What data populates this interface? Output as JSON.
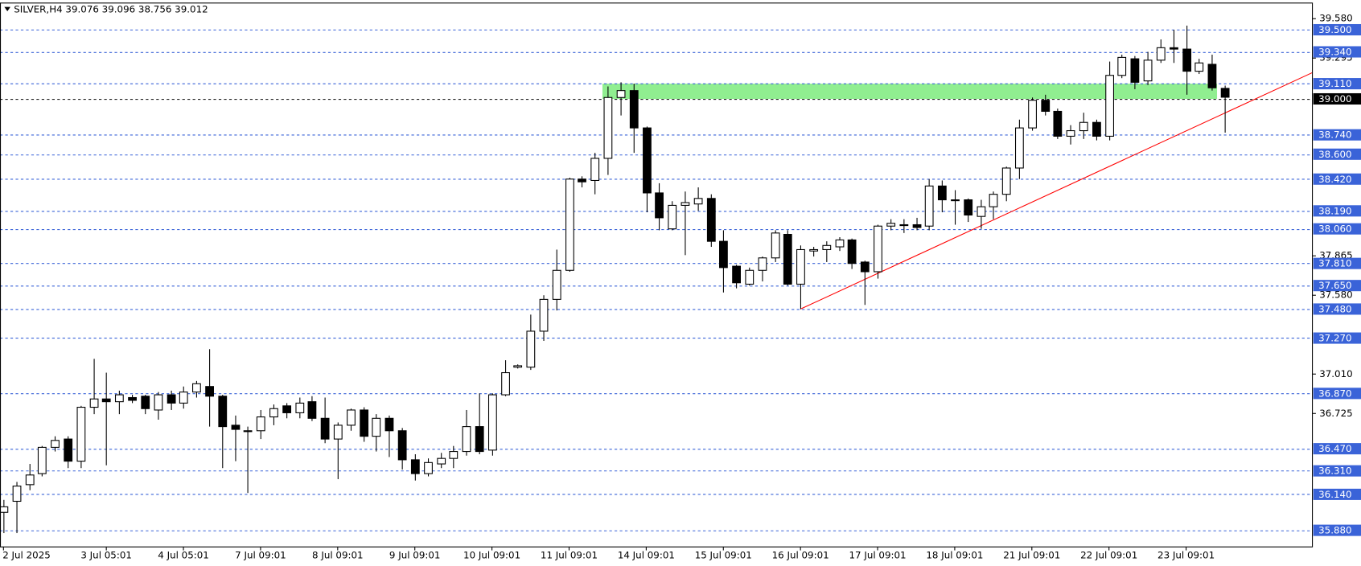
{
  "chart_data": {
    "type": "candlestick",
    "title": "SILVER,H4  39.076 39.096 38.756 39.012",
    "categories": [
      "2 Jul 2025",
      null,
      null,
      null,
      null,
      null,
      null,
      null,
      "3 Jul 05:01",
      null,
      null,
      null,
      null,
      null,
      "4 Jul 05:01",
      null,
      null,
      null,
      null,
      null,
      "7 Jul 09:01",
      null,
      null,
      null,
      null,
      null,
      "8 Jul 09:01",
      null,
      null,
      null,
      null,
      null,
      "9 Jul 09:01",
      null,
      null,
      null,
      null,
      null,
      "10 Jul 09:01",
      null,
      null,
      null,
      null,
      null,
      "11 Jul 09:01",
      null,
      null,
      null,
      null,
      null,
      "14 Jul 09:01",
      null,
      null,
      null,
      null,
      null,
      "15 Jul 09:01",
      null,
      null,
      null,
      null,
      null,
      "16 Jul 09:01",
      null,
      null,
      null,
      null,
      null,
      "17 Jul 09:01",
      null,
      null,
      null,
      null,
      null,
      "18 Jul 09:01",
      null,
      null,
      null,
      null,
      null,
      "21 Jul 09:01",
      null,
      null,
      null,
      null,
      null,
      "22 Jul 09:01",
      null,
      null,
      null,
      null,
      null,
      "23 Jul 09:01",
      null,
      null,
      null
    ],
    "open": [
      36.01,
      36.09,
      36.21,
      36.29,
      36.48,
      36.54,
      36.38,
      36.77,
      36.83,
      36.81,
      36.84,
      36.85,
      36.75,
      36.86,
      36.8,
      36.88,
      36.92,
      36.85,
      36.64,
      36.6,
      36.6,
      36.7,
      36.78,
      36.73,
      36.81,
      36.69,
      36.54,
      36.64,
      36.75,
      36.56,
      36.69,
      36.6,
      36.39,
      36.29,
      36.36,
      36.4,
      36.45,
      36.63,
      36.46,
      36.86,
      37.06,
      37.06,
      37.32,
      37.55,
      37.76,
      38.42,
      38.41,
      38.57,
      39.01,
      39.06,
      38.79,
      38.32,
      38.06,
      38.23,
      38.24,
      38.28,
      37.97,
      37.79,
      37.66,
      37.76,
      37.85,
      38.02,
      37.66,
      37.9,
      37.91,
      37.93,
      37.98,
      37.82,
      37.75,
      38.08,
      38.09,
      38.09,
      38.08,
      38.37,
      38.27,
      38.27,
      38.15,
      38.22,
      38.31,
      38.5,
      38.79,
      38.99,
      38.91,
      38.73,
      38.77,
      38.83,
      38.73,
      39.17,
      39.29,
      39.13,
      39.28,
      39.37,
      39.36,
      39.2,
      39.25,
      39.076
    ],
    "high": [
      36.1,
      36.23,
      36.36,
      36.49,
      36.56,
      36.56,
      36.78,
      37.12,
      37.02,
      36.89,
      36.86,
      36.86,
      36.88,
      36.89,
      36.92,
      36.96,
      37.19,
      36.86,
      36.71,
      36.63,
      36.75,
      36.79,
      36.8,
      36.84,
      36.85,
      36.84,
      36.66,
      36.76,
      36.77,
      36.72,
      36.71,
      36.62,
      36.43,
      36.4,
      36.44,
      36.49,
      36.75,
      36.87,
      36.87,
      37.11,
      37.08,
      37.44,
      37.58,
      37.91,
      38.43,
      38.44,
      38.61,
      39.09,
      39.12,
      39.11,
      38.8,
      38.39,
      38.26,
      38.33,
      38.36,
      38.31,
      38.05,
      37.8,
      37.78,
      37.86,
      38.05,
      38.05,
      37.94,
      37.93,
      37.97,
      38.0,
      37.99,
      37.83,
      38.09,
      38.13,
      38.13,
      38.14,
      38.42,
      38.41,
      38.34,
      38.28,
      38.27,
      38.33,
      38.51,
      38.85,
      39.01,
      39.03,
      38.93,
      38.81,
      38.9,
      38.85,
      39.27,
      39.32,
      39.31,
      39.34,
      39.43,
      39.5,
      39.53,
      39.29,
      39.32,
      39.096
    ],
    "low": [
      35.86,
      35.86,
      36.17,
      36.27,
      36.45,
      36.33,
      36.33,
      36.72,
      36.35,
      36.72,
      36.8,
      36.72,
      36.68,
      36.75,
      36.76,
      36.84,
      36.63,
      36.33,
      36.38,
      36.15,
      36.54,
      36.64,
      36.69,
      36.69,
      36.67,
      36.51,
      36.25,
      36.6,
      36.52,
      36.45,
      36.41,
      36.32,
      36.24,
      36.27,
      36.33,
      36.33,
      36.42,
      36.43,
      36.42,
      36.85,
      37.05,
      37.04,
      37.25,
      37.47,
      37.75,
      38.36,
      38.31,
      38.45,
      38.88,
      38.61,
      38.18,
      38.05,
      38.05,
      37.87,
      38.19,
      37.93,
      37.6,
      37.63,
      37.65,
      37.68,
      37.82,
      37.65,
      37.48,
      37.86,
      37.82,
      37.9,
      37.77,
      37.51,
      37.7,
      38.05,
      38.03,
      38.05,
      38.05,
      38.18,
      38.09,
      38.11,
      38.06,
      38.13,
      38.26,
      38.42,
      38.77,
      38.88,
      38.71,
      38.67,
      38.71,
      38.7,
      38.7,
      39.15,
      39.07,
      39.1,
      39.26,
      39.26,
      39.03,
      39.18,
      39.06,
      38.756
    ],
    "close": [
      36.05,
      36.2,
      36.28,
      36.48,
      36.53,
      36.38,
      36.77,
      36.83,
      36.81,
      36.86,
      36.82,
      36.76,
      36.86,
      36.8,
      36.88,
      36.94,
      36.85,
      36.63,
      36.61,
      36.6,
      36.7,
      36.76,
      36.73,
      36.8,
      36.69,
      36.54,
      36.64,
      36.75,
      36.56,
      36.69,
      36.6,
      36.39,
      36.29,
      36.37,
      36.4,
      36.45,
      36.63,
      36.45,
      36.86,
      37.02,
      37.07,
      37.32,
      37.55,
      37.76,
      38.42,
      38.4,
      38.57,
      39.01,
      39.06,
      38.79,
      38.32,
      38.14,
      38.23,
      38.25,
      38.28,
      37.97,
      37.78,
      37.67,
      37.76,
      37.85,
      38.03,
      37.66,
      37.91,
      37.91,
      37.94,
      37.98,
      37.81,
      37.75,
      38.08,
      38.1,
      38.09,
      38.07,
      38.37,
      38.27,
      38.27,
      38.16,
      38.22,
      38.31,
      38.5,
      38.79,
      38.99,
      38.91,
      38.73,
      38.77,
      38.83,
      38.73,
      39.17,
      39.3,
      39.12,
      39.28,
      39.37,
      39.36,
      39.2,
      39.26,
      39.08,
      39.012
    ],
    "bull_color": "#ffffff",
    "bear_color": "#000000",
    "ylim": [
      35.76,
      39.69
    ],
    "yticks": [
      {
        "value": 39.58,
        "label": "39.580"
      },
      {
        "value": 39.295,
        "label": "39.295"
      },
      {
        "value": 37.865,
        "label": "37.865"
      },
      {
        "value": 37.58,
        "label": "37.580"
      },
      {
        "value": 37.01,
        "label": "37.010"
      },
      {
        "value": 36.725,
        "label": "36.725"
      }
    ],
    "level_color": "#3a63d8",
    "levels": [
      {
        "value": 39.5,
        "label": "39.500"
      },
      {
        "value": 39.34,
        "label": "39.340"
      },
      {
        "value": 39.11,
        "label": "39.110"
      },
      {
        "value": 38.74,
        "label": "38.740"
      },
      {
        "value": 38.6,
        "label": "38.600"
      },
      {
        "value": 38.42,
        "label": "38.420"
      },
      {
        "value": 38.19,
        "label": "38.190"
      },
      {
        "value": 38.06,
        "label": "38.060"
      },
      {
        "value": 37.81,
        "label": "37.810"
      },
      {
        "value": 37.65,
        "label": "37.650"
      },
      {
        "value": 37.48,
        "label": "37.480"
      },
      {
        "value": 37.27,
        "label": "37.270"
      },
      {
        "value": 36.87,
        "label": "36.870"
      },
      {
        "value": 36.47,
        "label": "36.470"
      },
      {
        "value": 36.31,
        "label": "36.310"
      },
      {
        "value": 36.14,
        "label": "36.140"
      },
      {
        "value": 35.88,
        "label": "35.880"
      }
    ],
    "bid_line": {
      "value": 39.0,
      "label": "39.000",
      "color": "#000000"
    },
    "zone": {
      "low": 39.0,
      "high": 39.11,
      "color": "#90ee90"
    },
    "trendline": {
      "color": "#ff0000",
      "values": [
        37.48,
        39.19
      ]
    }
  }
}
